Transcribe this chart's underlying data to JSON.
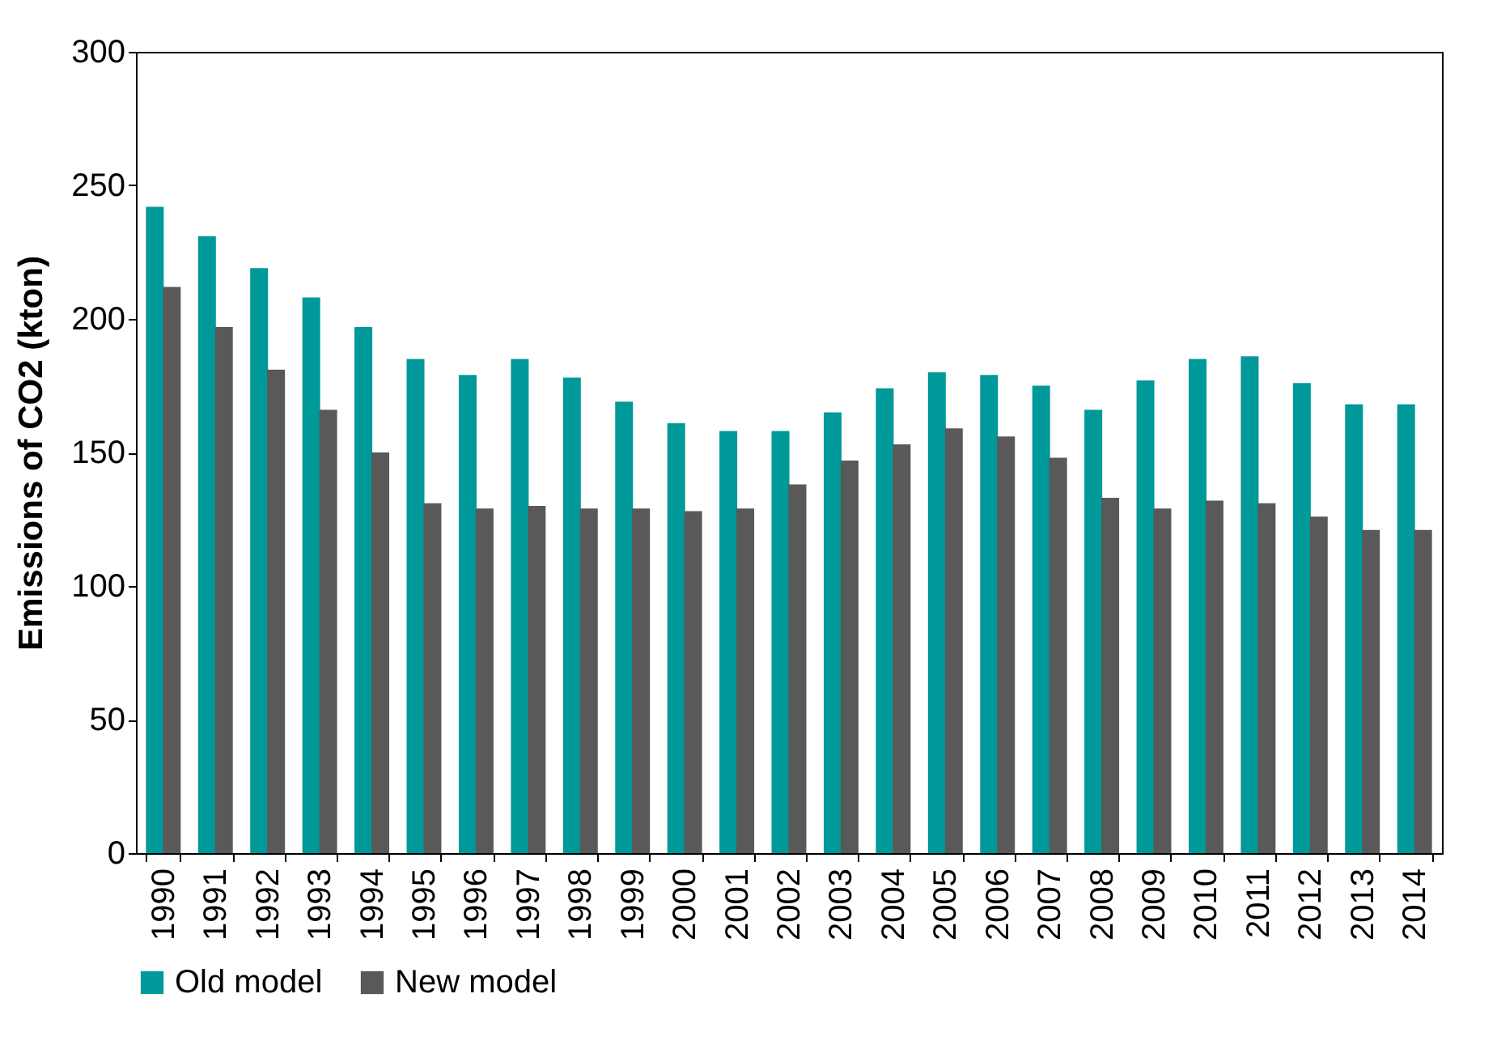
{
  "chart_data": {
    "type": "bar",
    "ylabel": "Emissions of CO2 (kton)",
    "categories": [
      "1990",
      "1991",
      "1992",
      "1993",
      "1994",
      "1995",
      "1996",
      "1997",
      "1998",
      "1999",
      "2000",
      "2001",
      "2002",
      "2003",
      "2004",
      "2005",
      "2006",
      "2007",
      "2008",
      "2009",
      "2010",
      "2011",
      "2012",
      "2013",
      "2014"
    ],
    "series": [
      {
        "name": "Old model",
        "color": "#009999",
        "values": [
          242,
          231,
          219,
          208,
          197,
          185,
          179,
          185,
          178,
          169,
          161,
          158,
          158,
          165,
          174,
          180,
          179,
          175,
          166,
          177,
          185,
          186,
          176,
          168,
          168
        ]
      },
      {
        "name": "New model",
        "color": "#595959",
        "values": [
          212,
          197,
          181,
          166,
          150,
          131,
          129,
          130,
          129,
          129,
          128,
          129,
          138,
          147,
          153,
          159,
          156,
          148,
          133,
          129,
          132,
          131,
          126,
          121,
          121
        ]
      }
    ],
    "ylim": [
      0,
      300
    ],
    "yticks": [
      0,
      50,
      100,
      150,
      200,
      250,
      300
    ],
    "grid": false,
    "legend": "bottom"
  }
}
